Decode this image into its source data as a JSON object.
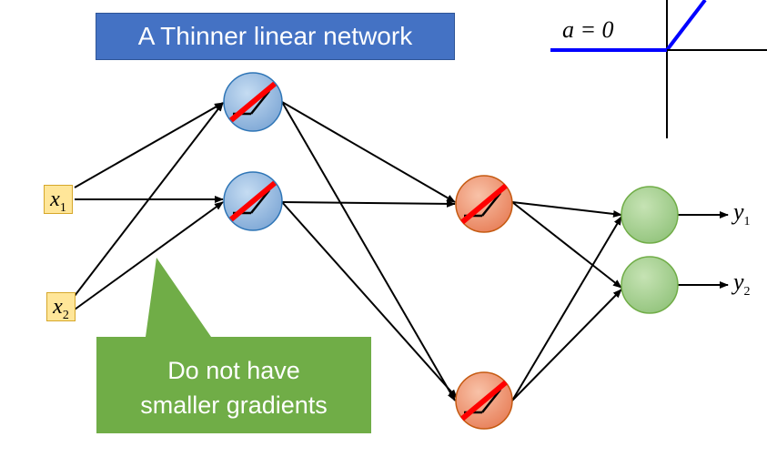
{
  "title": "A Thinner linear network",
  "activation_label": "a = 0",
  "inputs": [
    {
      "var": "x",
      "sub": "1"
    },
    {
      "var": "x",
      "sub": "2"
    }
  ],
  "outputs": [
    {
      "var": "y",
      "sub": "1"
    },
    {
      "var": "y",
      "sub": "2"
    }
  ],
  "callout": {
    "line1": "Do not have",
    "line2": "smaller gradients"
  },
  "colors": {
    "title_bg": "#4472c4",
    "input_bg": "#ffe699",
    "hidden1_neuron": "#9dc3e6",
    "hidden2_neuron": "#f4a582",
    "output_neuron": "#a9d18e",
    "callout_bg": "#70ad47",
    "relu_line": "#0000ff",
    "cross_line": "#ff0000"
  }
}
